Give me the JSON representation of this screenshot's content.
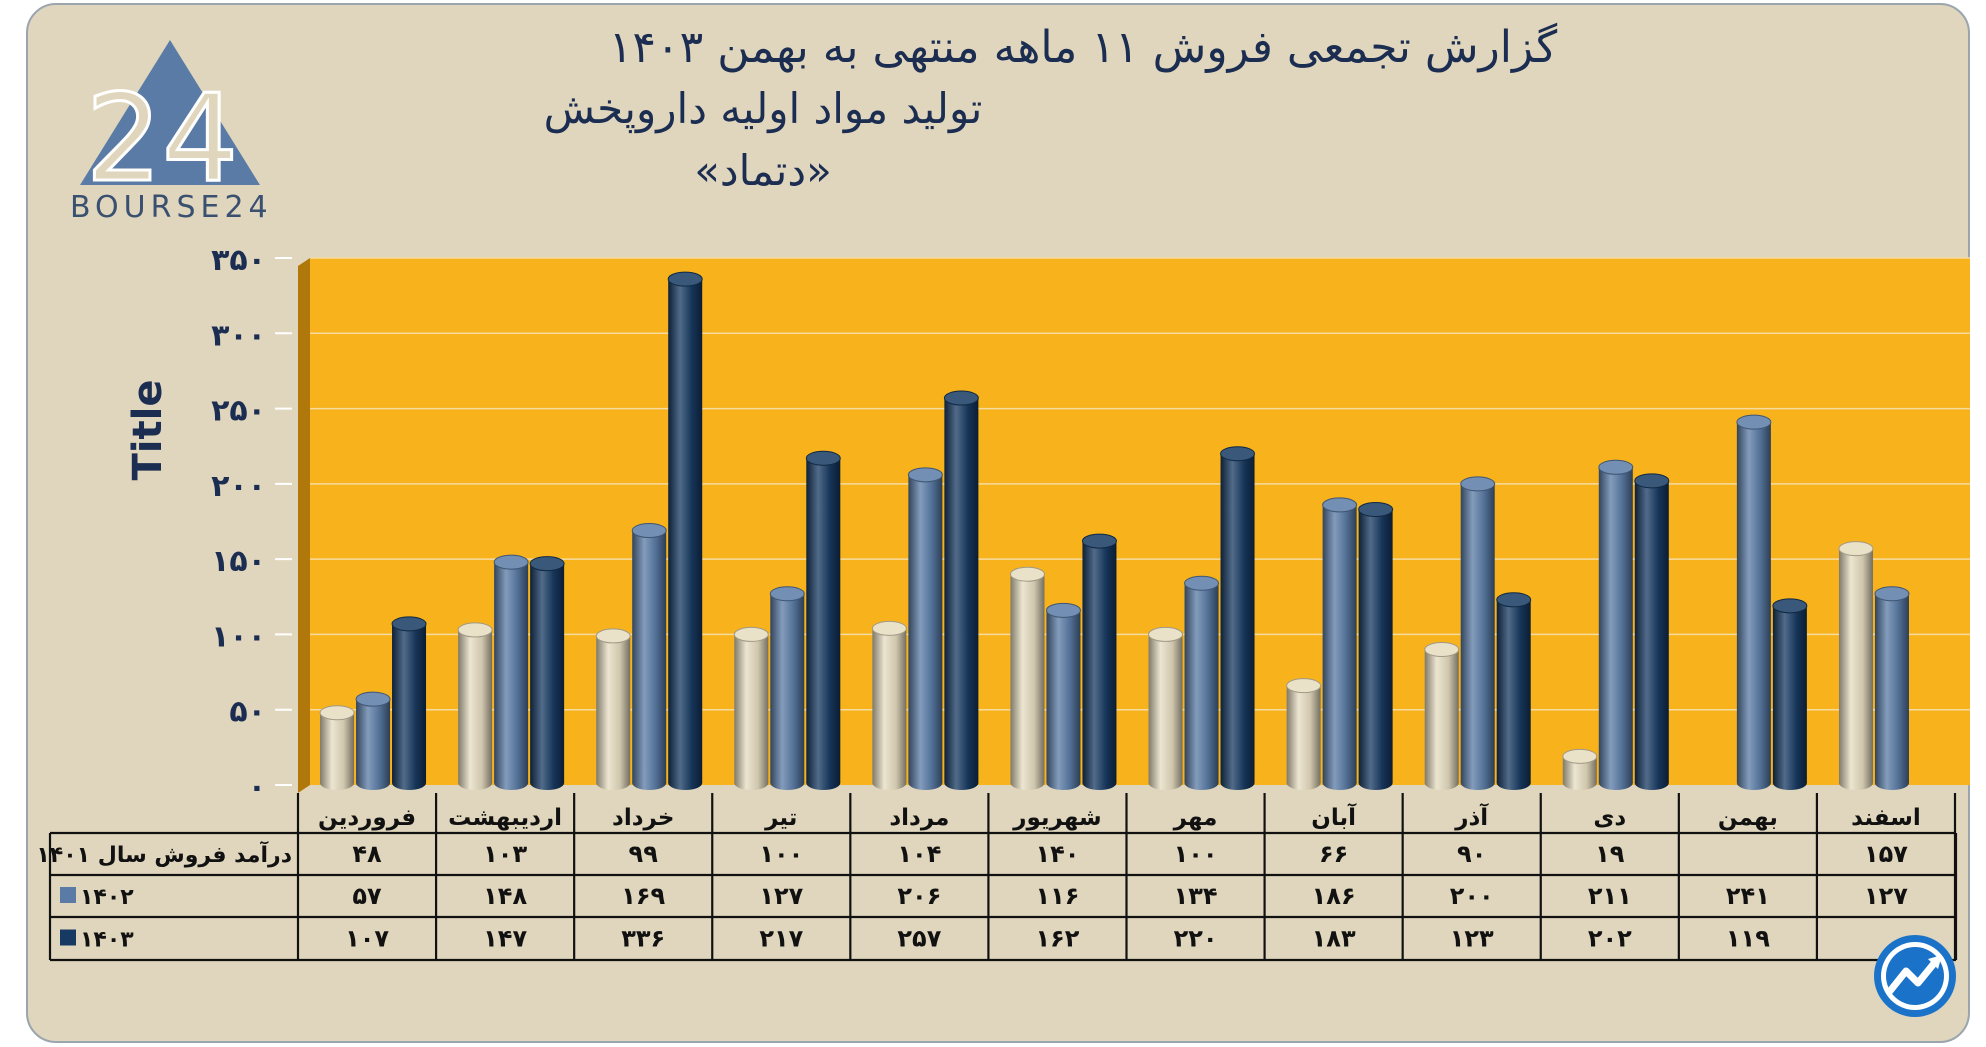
{
  "header": {
    "title_line1": "گزارش تجمعی فروش ۱۱ ماهه منتهی به بهمن ۱۴۰۳",
    "title_line2": "تولید مواد اولیه داروپخش",
    "title_line3": "«دتماد»"
  },
  "logo": {
    "text": "BOURSE24",
    "mark": "24",
    "icon": "bourse24-triangle-logo"
  },
  "bottom_icon": "trend-arrow-circle-icon",
  "chart_data": {
    "type": "bar",
    "title": "گزارش تجمعی فروش ۱۱ ماهه منتهی به بهمن ۱۴۰۳",
    "ylabel": "Title",
    "ylim": [
      0,
      350
    ],
    "yticks": [
      {
        "value": 0,
        "label": "۰"
      },
      {
        "value": 50,
        "label": "۵۰"
      },
      {
        "value": 100,
        "label": "۱۰۰"
      },
      {
        "value": 150,
        "label": "۱۵۰"
      },
      {
        "value": 200,
        "label": "۲۰۰"
      },
      {
        "value": 250,
        "label": "۲۵۰"
      },
      {
        "value": 300,
        "label": "۳۰۰"
      },
      {
        "value": 350,
        "label": "۳۵۰"
      }
    ],
    "grid": true,
    "plot_background": "#f7b21c",
    "categories": [
      "فروردین",
      "اردیبهشت",
      "خرداد",
      "تیر",
      "مرداد",
      "شهریور",
      "مهر",
      "آبان",
      "آذر",
      "دی",
      "بهمن",
      "اسفند"
    ],
    "series": [
      {
        "name": "درآمد فروش سال ۱۴۰۱",
        "color": "#e6dcc0",
        "values": [
          48,
          103,
          99,
          100,
          104,
          140,
          100,
          66,
          90,
          19,
          null,
          157
        ],
        "labels": [
          "۴۸",
          "۱۰۳",
          "۹۹",
          "۱۰۰",
          "۱۰۴",
          "۱۴۰",
          "۱۰۰",
          "۶۶",
          "۹۰",
          "۱۹",
          "",
          "۱۵۷"
        ]
      },
      {
        "name": "۱۴۰۲",
        "color": "#5a7ba6",
        "values": [
          57,
          148,
          169,
          127,
          206,
          116,
          134,
          186,
          200,
          211,
          241,
          127
        ],
        "labels": [
          "۵۷",
          "۱۴۸",
          "۱۶۹",
          "۱۲۷",
          "۲۰۶",
          "۱۱۶",
          "۱۳۴",
          "۱۸۶",
          "۲۰۰",
          "۲۱۱",
          "۲۴۱",
          "۱۲۷"
        ]
      },
      {
        "name": "۱۴۰۳",
        "color": "#173a62",
        "values": [
          107,
          147,
          336,
          217,
          257,
          162,
          220,
          183,
          123,
          202,
          119,
          null
        ],
        "labels": [
          "۱۰۷",
          "۱۴۷",
          "۳۳۶",
          "۲۱۷",
          "۲۵۷",
          "۱۶۲",
          "۲۲۰",
          "۱۸۳",
          "۱۲۳",
          "۲۰۲",
          "۱۱۹",
          ""
        ]
      }
    ]
  }
}
